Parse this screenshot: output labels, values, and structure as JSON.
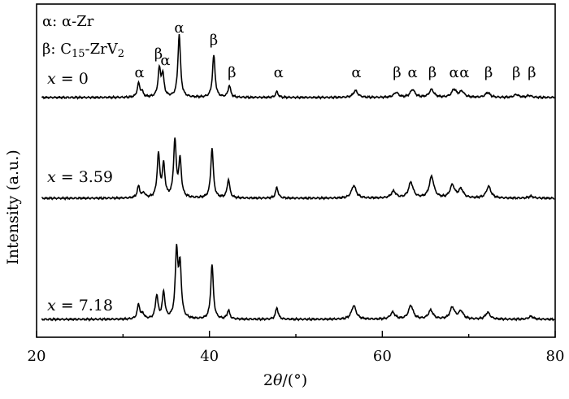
{
  "chart_data": {
    "type": "line",
    "title": "",
    "xlabel": "2θ/(°)",
    "ylabel": "Intensity (a.u.)",
    "xlim": [
      20,
      80
    ],
    "x_ticks": [
      "20",
      "40",
      "60",
      "80"
    ],
    "y_ticks": false,
    "grid": false,
    "legend": {
      "placement": "top-left",
      "entries": [
        {
          "symbol": "α",
          "label": "α-Zr"
        },
        {
          "symbol": "β",
          "label": "C15-ZrV2"
        }
      ]
    },
    "series": [
      {
        "name": "x = 0",
        "baseline": 0,
        "peaks": [
          [
            31.8,
            0.14
          ],
          [
            32.2,
            0.05
          ],
          [
            34.2,
            0.28
          ],
          [
            34.6,
            0.22
          ],
          [
            36.5,
            0.64
          ],
          [
            40.5,
            0.43
          ],
          [
            42.3,
            0.12
          ],
          [
            47.8,
            0.06
          ],
          [
            56.9,
            0.07
          ],
          [
            61.6,
            0.05
          ],
          [
            63.5,
            0.08
          ],
          [
            65.7,
            0.08
          ],
          [
            68.3,
            0.08
          ],
          [
            69.2,
            0.06
          ],
          [
            72.2,
            0.05
          ],
          [
            75.5,
            0.03
          ],
          [
            77.0,
            0.02
          ]
        ]
      },
      {
        "name": "x = 3.59",
        "baseline": 0,
        "peaks": [
          [
            31.8,
            0.12
          ],
          [
            32.4,
            0.05
          ],
          [
            34.1,
            0.44
          ],
          [
            34.7,
            0.33
          ],
          [
            36.0,
            0.58
          ],
          [
            36.6,
            0.38
          ],
          [
            40.3,
            0.51
          ],
          [
            42.2,
            0.19
          ],
          [
            47.8,
            0.11
          ],
          [
            56.7,
            0.13
          ],
          [
            61.3,
            0.07
          ],
          [
            63.3,
            0.16
          ],
          [
            65.7,
            0.22
          ],
          [
            68.1,
            0.13
          ],
          [
            69.1,
            0.09
          ],
          [
            72.3,
            0.12
          ],
          [
            77.2,
            0.02
          ]
        ]
      },
      {
        "name": "x = 7.18",
        "baseline": 0,
        "peaks": [
          [
            31.8,
            0.15
          ],
          [
            32.3,
            0.05
          ],
          [
            33.9,
            0.24
          ],
          [
            34.7,
            0.27
          ],
          [
            36.2,
            0.68
          ],
          [
            36.6,
            0.52
          ],
          [
            40.3,
            0.56
          ],
          [
            42.2,
            0.09
          ],
          [
            47.8,
            0.12
          ],
          [
            56.7,
            0.14
          ],
          [
            61.2,
            0.07
          ],
          [
            63.3,
            0.14
          ],
          [
            65.6,
            0.09
          ],
          [
            68.1,
            0.12
          ],
          [
            69.1,
            0.08
          ],
          [
            72.2,
            0.07
          ],
          [
            77.2,
            0.03
          ]
        ]
      }
    ],
    "annotations": [
      {
        "text": "α",
        "x": 31.9
      },
      {
        "text": "β",
        "x": 34.1
      },
      {
        "text": "α",
        "x": 34.9
      },
      {
        "text": "α",
        "x": 36.5
      },
      {
        "text": "β",
        "x": 40.5
      },
      {
        "text": "β",
        "x": 42.6
      },
      {
        "text": "α",
        "x": 48.0
      },
      {
        "text": "α",
        "x": 57.0
      },
      {
        "text": "β",
        "x": 61.7
      },
      {
        "text": "α",
        "x": 63.5
      },
      {
        "text": "β",
        "x": 65.8
      },
      {
        "text": "α",
        "x": 68.3
      },
      {
        "text": "α",
        "x": 69.5
      },
      {
        "text": "β",
        "x": 72.3
      },
      {
        "text": "β",
        "x": 75.5
      },
      {
        "text": "β",
        "x": 77.3
      }
    ]
  }
}
